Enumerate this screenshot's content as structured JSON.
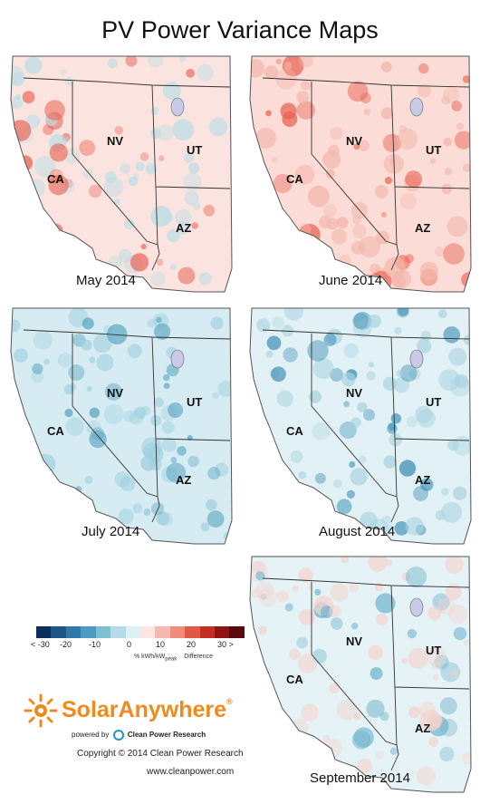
{
  "title": "PV Power Variance Maps",
  "maps": [
    {
      "caption": "May 2014",
      "base": "#fbe4e0",
      "accent": "#e8604f",
      "accent2": "#b8dde6"
    },
    {
      "caption": "June 2014",
      "base": "#fbdcd6",
      "accent": "#e8604f",
      "accent2": "#f3b5aa"
    },
    {
      "caption": "July 2014",
      "base": "#d6ecf2",
      "accent": "#5aa5c0",
      "accent2": "#9fd0df"
    },
    {
      "caption": "August 2014",
      "base": "#e2f1f5",
      "accent": "#3e8fb4",
      "accent2": "#a8d3e0"
    },
    {
      "caption": "September 2014",
      "base": "#e6f3f6",
      "accent": "#6fb3cc",
      "accent2": "#f4d2cc"
    }
  ],
  "state_labels": {
    "ca": "CA",
    "nv": "NV",
    "ut": "UT",
    "az": "AZ"
  },
  "legend": {
    "colors": [
      "#0c2d5c",
      "#1c5588",
      "#2f78ab",
      "#4b9ac2",
      "#7fbfd6",
      "#b4dbe7",
      "#dcf0f5",
      "#fde5e1",
      "#f7b9af",
      "#ef8c7d",
      "#e25847",
      "#c42d23",
      "#8e1414",
      "#5a0a0a"
    ],
    "tick_labels": [
      "< -30",
      "-20",
      "-10",
      "0",
      "10",
      "20",
      "30 >"
    ],
    "unit": "% kWh/kW",
    "unit_sub": "peak",
    "unit_tail": "Difference"
  },
  "logo": {
    "name": "SolarAnywhere",
    "reg": "®",
    "powered": "powered by",
    "brand": "Clean Power Research"
  },
  "copyright": "Copyright © 2014 Clean Power Research",
  "website": "www.cleanpower.com"
}
